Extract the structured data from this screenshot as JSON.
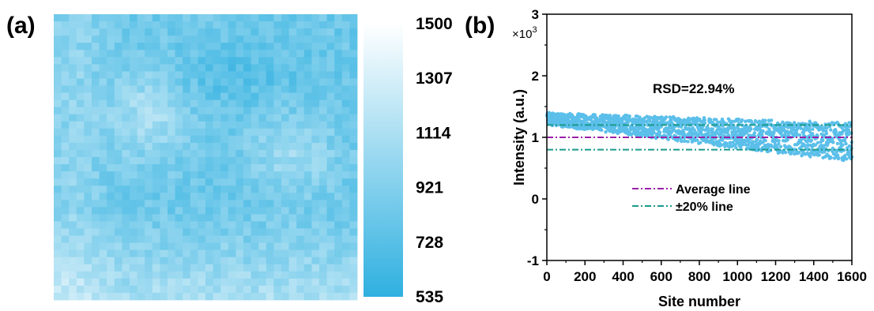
{
  "chart_data": [
    {
      "type": "heatmap",
      "panel_label": "(a)",
      "grid": {
        "rows": 40,
        "cols": 40
      },
      "colorbar": {
        "min": 535,
        "max": 1500,
        "ticks": [
          "1500",
          "1307",
          "1114",
          "921",
          "728",
          "535"
        ],
        "color_low": "#2fb0e0",
        "color_high": "#ffffff"
      }
    },
    {
      "type": "scatter",
      "panel_label": "(b)",
      "xlabel": "Site number",
      "ylabel": "Intensity (a.u.)",
      "y_multiplier": "×10",
      "y_multiplier_exp": "3",
      "xlim": [
        0,
        1600
      ],
      "ylim": [
        -1,
        3
      ],
      "xticks": [
        "0",
        "200",
        "400",
        "600",
        "800",
        "1000",
        "1200",
        "1400",
        "1600"
      ],
      "yticks": [
        "3",
        "2",
        "1",
        "0",
        "-1"
      ],
      "annotation": "RSD=22.94%",
      "n_points": 1600,
      "point_color": "#5bbfea",
      "average": 1.0,
      "upper_20": 1.2,
      "lower_20": 0.8,
      "legend": [
        {
          "label": "Average line",
          "color": "#9b1fa8"
        },
        {
          "label": "±20% line",
          "color": "#1a9a8a"
        }
      ]
    }
  ]
}
